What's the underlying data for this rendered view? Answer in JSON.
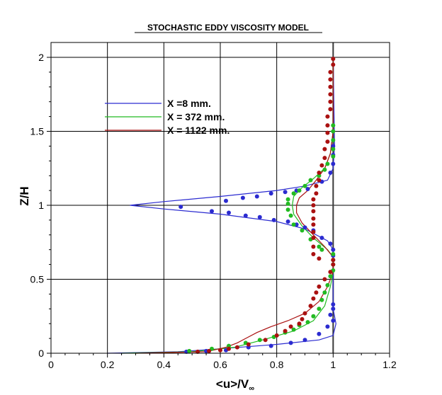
{
  "chart_data": {
    "type": "line",
    "title": "STOCHASTIC EDDY VISCOSITY MODEL",
    "xlabel": "<u>/V",
    "xlabel_subscript": "∞",
    "ylabel": "Z/H",
    "xlim": [
      0,
      1.2
    ],
    "ylim": [
      0,
      2.1
    ],
    "xticks": [
      0,
      0.2,
      0.4,
      0.6,
      0.8,
      1,
      1.2
    ],
    "xtick_labels": [
      "0",
      "0.2",
      "0.4",
      "0.6",
      "0.8",
      "1",
      "1.2"
    ],
    "yticks": [
      0,
      0.5,
      1,
      1.5,
      2
    ],
    "ytick_labels": [
      "0",
      "0.5",
      "1",
      "1.5",
      "2"
    ],
    "grid": true,
    "legend_position": "top-left",
    "series": [
      {
        "name": "X =8 mm.",
        "color": "#2b2bd0",
        "line": [
          [
            0.2,
            0
          ],
          [
            0.45,
            0.01
          ],
          [
            0.6,
            0.03
          ],
          [
            0.8,
            0.06
          ],
          [
            0.95,
            0.09
          ],
          [
            1.0,
            0.12
          ],
          [
            1.01,
            0.2
          ],
          [
            1.0,
            0.3
          ],
          [
            1.0,
            0.5
          ],
          [
            1.0,
            0.7
          ],
          [
            0.98,
            0.76
          ],
          [
            0.9,
            0.84
          ],
          [
            0.8,
            0.89
          ],
          [
            0.6,
            0.94
          ],
          [
            0.4,
            0.975
          ],
          [
            0.28,
            1.0
          ],
          [
            0.4,
            1.025
          ],
          [
            0.6,
            1.06
          ],
          [
            0.8,
            1.1
          ],
          [
            0.9,
            1.13
          ],
          [
            0.98,
            1.17
          ],
          [
            1.0,
            1.25
          ],
          [
            1.005,
            1.4
          ],
          [
            1.0,
            2.0
          ]
        ],
        "points": [
          [
            0.48,
            0.01
          ],
          [
            0.55,
            0.015
          ],
          [
            0.62,
            0.02
          ],
          [
            0.7,
            0.04
          ],
          [
            0.78,
            0.05
          ],
          [
            0.85,
            0.07
          ],
          [
            0.9,
            0.09
          ],
          [
            0.95,
            0.13
          ],
          [
            0.98,
            0.18
          ],
          [
            1.0,
            0.22
          ],
          [
            0.99,
            0.26
          ],
          [
            1.0,
            0.3
          ],
          [
            1.0,
            0.33
          ],
          [
            0.46,
            0.99
          ],
          [
            0.57,
            0.96
          ],
          [
            0.63,
            0.95
          ],
          [
            0.69,
            0.93
          ],
          [
            0.74,
            0.92
          ],
          [
            0.79,
            0.9
          ],
          [
            0.84,
            0.89
          ],
          [
            0.87,
            0.87
          ],
          [
            0.9,
            0.85
          ],
          [
            0.93,
            0.83
          ],
          [
            0.96,
            0.78
          ],
          [
            0.99,
            0.74
          ],
          [
            1.0,
            0.7
          ],
          [
            1.0,
            0.66
          ],
          [
            0.62,
            1.03
          ],
          [
            0.68,
            1.05
          ],
          [
            0.73,
            1.06
          ],
          [
            0.78,
            1.08
          ],
          [
            0.83,
            1.09
          ],
          [
            0.87,
            1.1
          ],
          [
            0.91,
            1.11
          ],
          [
            0.96,
            1.16
          ],
          [
            0.99,
            1.22
          ],
          [
            1.0,
            1.28
          ],
          [
            1.0,
            1.34
          ],
          [
            1.0,
            1.4
          ]
        ]
      },
      {
        "name": "X = 372 mm.",
        "color": "#22bb22",
        "line": [
          [
            0.25,
            0
          ],
          [
            0.5,
            0.01
          ],
          [
            0.65,
            0.04
          ],
          [
            0.75,
            0.09
          ],
          [
            0.86,
            0.15
          ],
          [
            0.93,
            0.22
          ],
          [
            0.97,
            0.32
          ],
          [
            0.99,
            0.45
          ],
          [
            1.0,
            0.55
          ],
          [
            1.0,
            0.65
          ],
          [
            0.98,
            0.7
          ],
          [
            0.93,
            0.78
          ],
          [
            0.89,
            0.86
          ],
          [
            0.86,
            0.94
          ],
          [
            0.855,
            1.0
          ],
          [
            0.86,
            1.06
          ],
          [
            0.89,
            1.12
          ],
          [
            0.93,
            1.18
          ],
          [
            0.97,
            1.25
          ],
          [
            0.99,
            1.35
          ],
          [
            1.0,
            1.5
          ],
          [
            1.0,
            2.0
          ]
        ],
        "points": [
          [
            0.49,
            0.015
          ],
          [
            0.57,
            0.03
          ],
          [
            0.63,
            0.05
          ],
          [
            0.69,
            0.07
          ],
          [
            0.74,
            0.09
          ],
          [
            0.79,
            0.11
          ],
          [
            0.83,
            0.14
          ],
          [
            0.86,
            0.16
          ],
          [
            0.88,
            0.19
          ],
          [
            0.91,
            0.21
          ],
          [
            0.93,
            0.25
          ],
          [
            0.95,
            0.3
          ],
          [
            0.96,
            0.36
          ],
          [
            0.97,
            0.41
          ],
          [
            0.98,
            0.46
          ],
          [
            0.99,
            0.52
          ],
          [
            1.0,
            0.56
          ],
          [
            1.0,
            0.6
          ],
          [
            1.0,
            0.63
          ],
          [
            1.0,
            0.67
          ],
          [
            0.96,
            0.7
          ],
          [
            0.95,
            0.72
          ],
          [
            0.92,
            0.77
          ],
          [
            0.89,
            0.83
          ],
          [
            0.86,
            0.87
          ],
          [
            0.85,
            0.93
          ],
          [
            0.84,
            0.97
          ],
          [
            0.84,
            1.01
          ],
          [
            0.84,
            1.04
          ],
          [
            0.86,
            1.08
          ],
          [
            0.88,
            1.1
          ],
          [
            0.9,
            1.13
          ],
          [
            0.92,
            1.17
          ],
          [
            0.95,
            1.2
          ],
          [
            0.97,
            1.24
          ],
          [
            0.98,
            1.28
          ],
          [
            1.0,
            1.33
          ],
          [
            1.0,
            1.38
          ],
          [
            1.0,
            1.44
          ],
          [
            1.0,
            1.5
          ],
          [
            1.0,
            1.54
          ]
        ]
      },
      {
        "name": "X = 1122 mm.",
        "color": "#aa1111",
        "line": [
          [
            0.3,
            0
          ],
          [
            0.55,
            0.01
          ],
          [
            0.62,
            0.04
          ],
          [
            0.66,
            0.07
          ],
          [
            0.69,
            0.1
          ],
          [
            0.73,
            0.14
          ],
          [
            0.78,
            0.18
          ],
          [
            0.84,
            0.22
          ],
          [
            0.9,
            0.27
          ],
          [
            0.95,
            0.35
          ],
          [
            0.98,
            0.45
          ],
          [
            1.0,
            0.55
          ],
          [
            1.0,
            0.65
          ],
          [
            0.97,
            0.72
          ],
          [
            0.93,
            0.8
          ],
          [
            0.89,
            0.88
          ],
          [
            0.87,
            0.95
          ],
          [
            0.87,
            1.0
          ],
          [
            0.88,
            1.05
          ],
          [
            0.91,
            1.1
          ],
          [
            0.94,
            1.17
          ],
          [
            0.97,
            1.25
          ],
          [
            0.99,
            1.35
          ],
          [
            1.0,
            1.5
          ],
          [
            1.0,
            2.0
          ]
        ],
        "points": [
          [
            0.52,
            0.01
          ],
          [
            0.56,
            0.015
          ],
          [
            0.6,
            0.02
          ],
          [
            0.63,
            0.03
          ],
          [
            0.66,
            0.04
          ],
          [
            0.7,
            0.06
          ],
          [
            0.76,
            0.09
          ],
          [
            0.8,
            0.12
          ],
          [
            0.83,
            0.15
          ],
          [
            0.85,
            0.18
          ],
          [
            0.88,
            0.2
          ],
          [
            0.89,
            0.23
          ],
          [
            0.9,
            0.27
          ],
          [
            0.92,
            0.32
          ],
          [
            0.93,
            0.37
          ],
          [
            0.94,
            0.41
          ],
          [
            0.95,
            0.45
          ],
          [
            0.97,
            0.5
          ],
          [
            0.99,
            0.55
          ],
          [
            1.0,
            0.6
          ],
          [
            1.0,
            0.63
          ],
          [
            0.95,
            0.64
          ],
          [
            0.93,
            0.67
          ],
          [
            0.93,
            0.72
          ],
          [
            0.93,
            0.78
          ],
          [
            0.93,
            0.82
          ],
          [
            0.93,
            0.87
          ],
          [
            0.93,
            0.91
          ],
          [
            0.93,
            0.96
          ],
          [
            0.93,
            1.0
          ],
          [
            0.93,
            1.04
          ],
          [
            0.94,
            1.08
          ],
          [
            0.94,
            1.13
          ],
          [
            0.95,
            1.17
          ],
          [
            0.95,
            1.22
          ],
          [
            0.96,
            1.27
          ],
          [
            0.97,
            1.32
          ],
          [
            0.97,
            1.38
          ],
          [
            0.98,
            1.43
          ],
          [
            0.98,
            1.49
          ],
          [
            0.98,
            1.54
          ],
          [
            0.98,
            1.6
          ],
          [
            0.99,
            1.65
          ],
          [
            0.99,
            1.7
          ],
          [
            0.99,
            1.75
          ],
          [
            0.99,
            1.8
          ],
          [
            0.99,
            1.85
          ],
          [
            0.99,
            1.9
          ],
          [
            1.0,
            1.95
          ],
          [
            1.0,
            1.99
          ]
        ]
      }
    ]
  }
}
